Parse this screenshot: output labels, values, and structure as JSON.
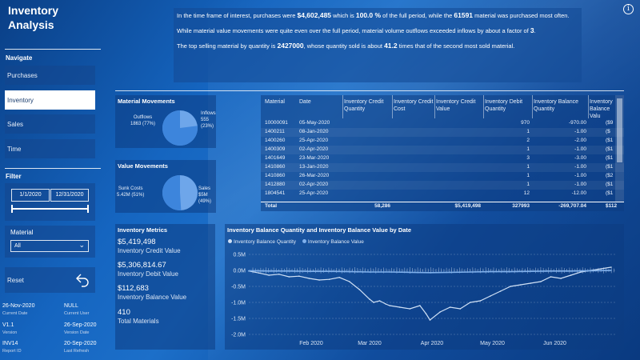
{
  "app": {
    "title": "Inventory Analysis"
  },
  "info_icon": "info-icon",
  "navigate": {
    "label": "Navigate",
    "items": [
      {
        "label": "Purchases",
        "active": false
      },
      {
        "label": "Inventory",
        "active": true
      },
      {
        "label": "Sales",
        "active": false
      },
      {
        "label": "Time",
        "active": false
      }
    ]
  },
  "filter": {
    "label": "Filter",
    "date_from": "1/1/2020",
    "date_to": "12/31/2020",
    "material_label": "Material",
    "material_value": "All",
    "reset_label": "Reset",
    "reset_icon": "undo-arrow-icon"
  },
  "meta": [
    {
      "value": "26-Nov-2020",
      "key": "Current Date"
    },
    {
      "value": "NULL",
      "key": "Current User"
    },
    {
      "value": "V1.1",
      "key": "Version"
    },
    {
      "value": "26-Sep-2020",
      "key": "Version Date"
    },
    {
      "value": "INV14",
      "key": "Report ID"
    },
    {
      "value": "20-Sep-2020",
      "key": "Last Refresh"
    }
  ],
  "insights": {
    "p1_a": "In the time frame of interest, purchases were ",
    "p1_v1": "$4,602,485",
    "p1_b": " which is ",
    "p1_v2": "100.0 %",
    "p1_c": " of the full period, while the ",
    "p1_v3": "61591",
    "p1_d": " material was purchased most often.",
    "p2_a": "While material value movements were quite even over the full period, material volume outflows exceeded inflows by about a factor of ",
    "p2_v1": "3",
    "p2_b": ".",
    "p3_a": "The top selling material by quantity is ",
    "p3_v1": "2427000",
    "p3_b": ", whose quantity sold is about ",
    "p3_v2": "41.2",
    "p3_c": " times that of the second most sold material."
  },
  "material_movements": {
    "title": "Material Movements",
    "outflows_label": "Outflows",
    "outflows_value": "1863 (77%)",
    "inflows_label": "Inflows",
    "inflows_value": "555 (23%)",
    "outflows_share": 0.77
  },
  "value_movements": {
    "title": "Value Movements",
    "sunk_label": "Sunk Costs",
    "sunk_value": "5.42M (51%)",
    "sales_label": "Sales",
    "sales_value": "$5M (49%)",
    "sunk_share": 0.51
  },
  "table": {
    "columns": [
      "Material",
      "Date",
      "Inventory Credit Quantity",
      "Inventory Credit Cost",
      "Inventory Credit Value",
      "Inventory Debit Quantity",
      "Inventory Balance Quantity",
      "Inventory Balance Valu"
    ],
    "rows": [
      [
        "10000091",
        "05-May-2020",
        "",
        "",
        "",
        "970",
        "-970.00",
        "($9"
      ],
      [
        "1400211",
        "08-Jan-2020",
        "",
        "",
        "",
        "1",
        "-1.00",
        "($"
      ],
      [
        "1400260",
        "25-Apr-2020",
        "",
        "",
        "",
        "2",
        "-2.00",
        "($1"
      ],
      [
        "1400309",
        "02-Apr-2020",
        "",
        "",
        "",
        "1",
        "-1.00",
        "($1"
      ],
      [
        "1401649",
        "23-Mar-2020",
        "",
        "",
        "",
        "3",
        "-3.00",
        "($1"
      ],
      [
        "1410860",
        "13-Jan-2020",
        "",
        "",
        "",
        "1",
        "-1.00",
        "($1"
      ],
      [
        "1410860",
        "26-Mar-2020",
        "",
        "",
        "",
        "1",
        "-1.00",
        "($2"
      ],
      [
        "1412880",
        "02-Apr-2020",
        "",
        "",
        "",
        "1",
        "-1.00",
        "($1"
      ],
      [
        "1804541",
        "25-Apr-2020",
        "",
        "",
        "",
        "12",
        "-12.00",
        "($1"
      ]
    ],
    "total": [
      "Total",
      "",
      "58,286",
      "",
      "$5,419,498",
      "327993",
      "-269,707.04",
      "$112"
    ]
  },
  "metrics": {
    "title": "Inventory Metrics",
    "items": [
      {
        "value": "$5,419,498",
        "label": "Inventory Credit Value"
      },
      {
        "value": "$5,306,814.67",
        "label": "Inventory Debit Value"
      },
      {
        "value": "$112,683",
        "label": "Inventory Balance Value"
      },
      {
        "value": "410",
        "label": "Total Materials"
      }
    ]
  },
  "chart_data": {
    "type": "line",
    "title": "Inventory Balance Quantity and Inventory Balance Value by Date",
    "xlabel": "",
    "ylabel": "",
    "ylim": [
      -2.0,
      0.5
    ],
    "yticks": [
      "0.5M",
      "0.0M",
      "-0.5M",
      "-1.0M",
      "-1.5M",
      "-2.0M"
    ],
    "ytick_values": [
      0.5,
      0.0,
      -0.5,
      -1.0,
      -1.5,
      -2.0
    ],
    "xticks": [
      "Feb 2020",
      "Mar 2020",
      "Apr 2020",
      "May 2020",
      "Jun 2020"
    ],
    "xtick_days": [
      31,
      60,
      91,
      121,
      152
    ],
    "xlim_days": [
      0,
      182
    ],
    "legend_position": "top-left",
    "series": [
      {
        "name": "Inventory Balance Quantity",
        "color": "#cfe0f5",
        "x_days": [
          0,
          5,
          10,
          15,
          20,
          25,
          30,
          35,
          40,
          45,
          50,
          55,
          60,
          62,
          65,
          68,
          70,
          75,
          80,
          85,
          88,
          90,
          95,
          100,
          105,
          110,
          115,
          120,
          125,
          130,
          135,
          140,
          145,
          150,
          155,
          160,
          165,
          170,
          175,
          180
        ],
        "values": [
          -0.02,
          -0.08,
          -0.15,
          -0.12,
          -0.2,
          -0.18,
          -0.25,
          -0.3,
          -0.28,
          -0.22,
          -0.35,
          -0.6,
          -0.9,
          -1.0,
          -0.95,
          -1.05,
          -1.1,
          -1.15,
          -1.2,
          -1.1,
          -1.35,
          -1.55,
          -1.3,
          -1.15,
          -1.2,
          -1.0,
          -0.95,
          -0.8,
          -0.65,
          -0.5,
          -0.45,
          -0.4,
          -0.35,
          -0.2,
          -0.25,
          -0.15,
          -0.05,
          0.0,
          0.05,
          0.1
        ]
      },
      {
        "name": "Inventory Balance Value",
        "color": "#7fb0ec",
        "x_days": [
          0,
          10,
          20,
          30,
          40,
          50,
          60,
          70,
          80,
          90,
          100,
          110,
          120,
          130,
          140,
          150,
          160,
          170,
          180
        ],
        "values": [
          -0.01,
          -0.02,
          -0.02,
          -0.03,
          -0.03,
          -0.04,
          -0.05,
          -0.05,
          -0.06,
          -0.07,
          -0.06,
          -0.05,
          -0.04,
          -0.04,
          -0.03,
          -0.02,
          -0.02,
          -0.01,
          0.0
        ]
      }
    ]
  }
}
